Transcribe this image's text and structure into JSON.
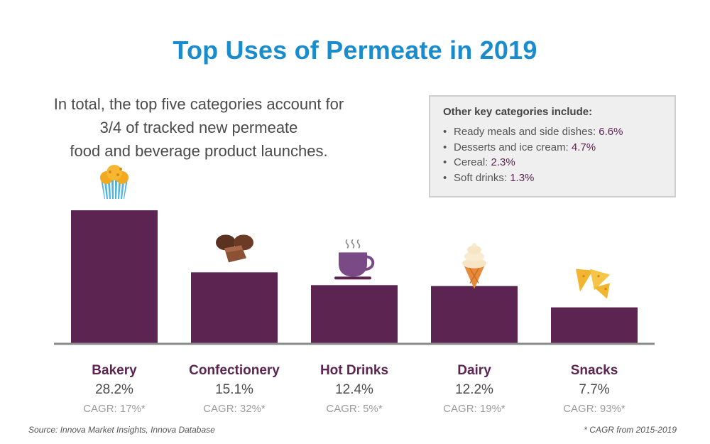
{
  "title": "Top Uses of Permeate in 2019",
  "intro_lines": [
    "In total, the top five categories account for",
    "3/4 of tracked new permeate",
    "food and beverage product launches."
  ],
  "other_box": {
    "heading": "Other key categories include:",
    "items": [
      {
        "label": "Ready meals and side dishes: ",
        "value": "6.6%"
      },
      {
        "label": "Desserts and ice cream: ",
        "value": "4.7%"
      },
      {
        "label": "Cereal: ",
        "value": "2.3%"
      },
      {
        "label": "Soft drinks: ",
        "value": "1.3%"
      }
    ]
  },
  "colors": {
    "title": "#1a8ccd",
    "bar": "#5c2451",
    "baseline": "#8a8a8a",
    "category_label": "#5c2451",
    "cagr": "#9a9a9a"
  },
  "chart_data": {
    "type": "bar",
    "categories": [
      "Bakery",
      "Confectionery",
      "Hot Drinks",
      "Dairy",
      "Snacks"
    ],
    "values": [
      28.2,
      15.1,
      12.4,
      12.2,
      7.7
    ],
    "value_labels": [
      "28.2%",
      "15.1%",
      "12.4%",
      "12.2%",
      "7.7%"
    ],
    "cagr_labels": [
      "CAGR: 17%*",
      "CAGR: 32%*",
      "CAGR: 5%*",
      "CAGR: 19%*",
      "CAGR: 93%*"
    ],
    "icons": [
      "cupcake-icon",
      "chocolate-icon",
      "coffee-cup-icon",
      "ice-cream-cone-icon",
      "nacho-chips-icon"
    ],
    "ylim": [
      0,
      28.2
    ],
    "grid": false,
    "legend": "none"
  },
  "footer": {
    "source": "Source: Innova Market Insights, Innova Database",
    "note": "* CAGR from 2015-2019"
  }
}
